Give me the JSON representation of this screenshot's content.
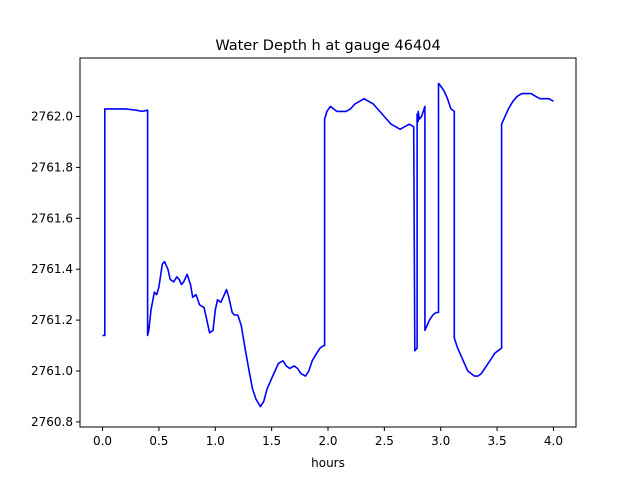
{
  "chart_data": {
    "type": "line",
    "title": "Water Depth h at gauge 46404",
    "xlabel": "hours",
    "ylabel": "",
    "xlim": [
      -0.2,
      4.2
    ],
    "ylim": [
      2760.78,
      2762.23
    ],
    "x_ticks": [
      0.0,
      0.5,
      1.0,
      1.5,
      2.0,
      2.5,
      3.0,
      3.5,
      4.0
    ],
    "x_tick_labels": [
      "0.0",
      "0.5",
      "1.0",
      "1.5",
      "2.0",
      "2.5",
      "3.0",
      "3.5",
      "4.0"
    ],
    "y_ticks": [
      2760.8,
      2761.0,
      2761.2,
      2761.4,
      2761.6,
      2761.8,
      2762.0
    ],
    "y_tick_labels": [
      "2760.8",
      "2761.0",
      "2761.2",
      "2761.4",
      "2761.6",
      "2761.8",
      "2762.0"
    ],
    "grid": false,
    "line_color": "#0000ff",
    "series": [
      {
        "x": [
          0.0,
          0.02,
          0.02,
          0.1,
          0.2,
          0.3,
          0.35,
          0.4,
          0.4,
          0.41,
          0.43,
          0.46,
          0.48,
          0.5,
          0.53,
          0.55,
          0.58,
          0.6,
          0.63,
          0.66,
          0.68,
          0.7,
          0.72,
          0.75,
          0.78,
          0.8,
          0.83,
          0.86,
          0.9,
          0.92,
          0.95,
          0.98,
          1.0,
          1.02,
          1.05,
          1.08,
          1.1,
          1.12,
          1.15,
          1.17,
          1.2,
          1.23,
          1.26,
          1.3,
          1.33,
          1.36,
          1.4,
          1.43,
          1.46,
          1.48,
          1.5,
          1.53,
          1.56,
          1.6,
          1.63,
          1.66,
          1.7,
          1.73,
          1.76,
          1.8,
          1.83,
          1.86,
          1.9,
          1.93,
          1.96,
          1.97,
          1.97,
          1.99,
          2.02,
          2.05,
          2.08,
          2.12,
          2.16,
          2.2,
          2.24,
          2.28,
          2.32,
          2.36,
          2.4,
          2.44,
          2.48,
          2.52,
          2.56,
          2.6,
          2.64,
          2.68,
          2.72,
          2.76,
          2.77,
          2.79,
          2.79,
          2.8,
          2.8,
          2.81,
          2.83,
          2.86,
          2.86,
          2.88,
          2.9,
          2.93,
          2.96,
          2.98,
          2.98,
          3.0,
          3.03,
          3.06,
          3.09,
          3.12,
          3.12,
          3.15,
          3.18,
          3.21,
          3.24,
          3.27,
          3.3,
          3.33,
          3.36,
          3.39,
          3.42,
          3.45,
          3.48,
          3.51,
          3.54,
          3.54,
          3.57,
          3.6,
          3.64,
          3.68,
          3.72,
          3.76,
          3.8,
          3.84,
          3.88,
          3.92,
          3.96,
          4.0
        ],
        "y": [
          2761.14,
          2761.14,
          2762.03,
          2762.03,
          2762.03,
          2762.025,
          2762.02,
          2762.025,
          2761.14,
          2761.16,
          2761.24,
          2761.31,
          2761.3,
          2761.33,
          2761.42,
          2761.43,
          2761.4,
          2761.36,
          2761.35,
          2761.37,
          2761.36,
          2761.34,
          2761.35,
          2761.38,
          2761.34,
          2761.29,
          2761.3,
          2761.26,
          2761.25,
          2761.21,
          2761.15,
          2761.16,
          2761.24,
          2761.28,
          2761.27,
          2761.3,
          2761.32,
          2761.29,
          2761.23,
          2761.22,
          2761.22,
          2761.18,
          2761.1,
          2761.0,
          2760.93,
          2760.89,
          2760.86,
          2760.88,
          2760.93,
          2760.95,
          2760.97,
          2761.0,
          2761.03,
          2761.04,
          2761.02,
          2761.01,
          2761.02,
          2761.01,
          2760.99,
          2760.98,
          2761.0,
          2761.04,
          2761.07,
          2761.09,
          2761.1,
          2761.1,
          2761.99,
          2762.02,
          2762.04,
          2762.03,
          2762.02,
          2762.02,
          2762.02,
          2762.03,
          2762.05,
          2762.06,
          2762.07,
          2762.06,
          2762.05,
          2762.03,
          2762.01,
          2761.99,
          2761.97,
          2761.96,
          2761.95,
          2761.96,
          2761.97,
          2761.96,
          2761.08,
          2761.09,
          2762.01,
          2761.98,
          2762.02,
          2761.99,
          2762.0,
          2762.04,
          2761.16,
          2761.18,
          2761.2,
          2761.22,
          2761.23,
          2761.23,
          2762.13,
          2762.12,
          2762.1,
          2762.07,
          2762.03,
          2762.02,
          2761.13,
          2761.09,
          2761.06,
          2761.03,
          2761.0,
          2760.99,
          2760.98,
          2760.98,
          2760.99,
          2761.01,
          2761.03,
          2761.05,
          2761.07,
          2761.08,
          2761.09,
          2761.97,
          2762.0,
          2762.03,
          2762.06,
          2762.08,
          2762.09,
          2762.09,
          2762.09,
          2762.08,
          2762.07,
          2762.07,
          2762.07,
          2762.06
        ]
      }
    ]
  }
}
